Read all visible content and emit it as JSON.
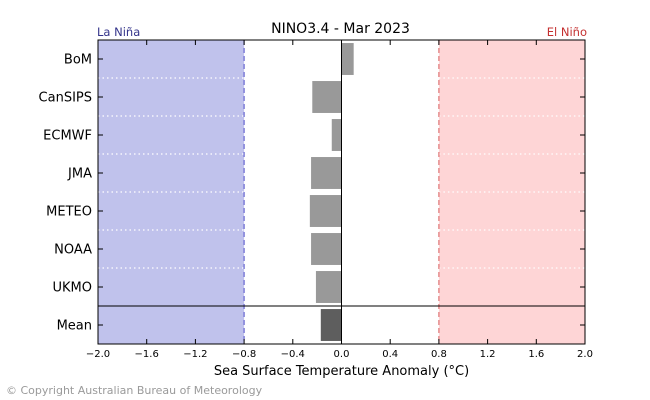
{
  "chart_data": {
    "type": "bar",
    "orientation": "horizontal",
    "title": "NINO3.4 - Mar 2023",
    "xlabel": "Sea Surface Temperature Anomaly (°C)",
    "xlim": [
      -2.0,
      2.0
    ],
    "xticks": [
      -2.0,
      -1.6,
      -1.2,
      -0.8,
      -0.4,
      0.0,
      0.4,
      0.8,
      1.2,
      1.6,
      2.0
    ],
    "xtick_labels": [
      "−2.0",
      "−1.6",
      "−1.2",
      "−0.8",
      "−0.4",
      "0.0",
      "0.4",
      "0.8",
      "1.2",
      "1.6",
      "2.0"
    ],
    "categories": [
      "BoM",
      "CanSIPS",
      "ECMWF",
      "JMA",
      "METEO",
      "NOAA",
      "UKMO",
      "Mean"
    ],
    "values": [
      0.1,
      -0.24,
      -0.08,
      -0.25,
      -0.26,
      -0.25,
      -0.21,
      -0.17
    ],
    "thresholds": {
      "la_nina": -0.8,
      "el_nino": 0.8
    },
    "region_labels": {
      "la_nina": "La Niña",
      "el_nino": "El Niño"
    },
    "colors": {
      "la_nina_fill": "#c0c2ec",
      "el_nino_fill": "#fed5d6",
      "la_nina_line": "#4d4dc8",
      "el_nino_line": "#d95c5c",
      "la_nina_text": "#33338a",
      "el_nino_text": "#c43030",
      "bar": "#999999",
      "mean_bar": "#5e5e5e"
    },
    "grid": "dotted separators between models"
  },
  "footer": {
    "copyright": "© Copyright Australian Bureau of Meteorology"
  }
}
